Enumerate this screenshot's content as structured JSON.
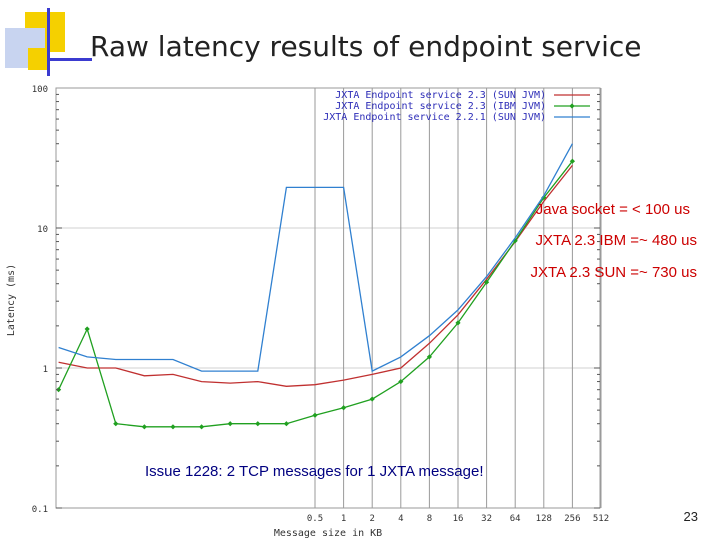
{
  "slide": {
    "title": "Raw latency results of endpoint service",
    "page_number": "23"
  },
  "annotations": {
    "java_socket": "Java socket = < 100 us",
    "jxta_ibm": "JXTA 2.3 IBM =~ 480 us",
    "jxta_sun": "JXTA 2.3 SUN =~ 730 us",
    "issue": "Issue 1228: 2 TCP messages for 1 JXTA message!"
  },
  "colors": {
    "accent_yellow": "#f5d000",
    "accent_blue": "#3b3bd0",
    "annotation_red": "#cc0000",
    "annotation_blue": "#000080"
  },
  "chart_data": {
    "type": "line",
    "xlabel": "Message size in KB",
    "ylabel": "Latency (ms)",
    "y_scale": "log",
    "ylim": [
      0.1,
      100
    ],
    "y_ticks": [
      "100",
      "10",
      "1",
      "0.1"
    ],
    "x_ticks": [
      "0.5",
      "1",
      "2",
      "4",
      "8",
      "16",
      "32",
      "64",
      "128",
      "256",
      "512"
    ],
    "x": [
      0.001,
      0.002,
      0.004,
      0.008,
      0.016,
      0.032,
      0.064,
      0.125,
      0.25,
      0.5,
      1,
      2,
      4,
      8,
      16,
      32,
      64,
      128,
      256
    ],
    "series": [
      {
        "name": "JXTA Endpoint service 2.3 (SUN JVM)",
        "color": "#c03030",
        "marker": "none",
        "values": [
          1.1,
          1.0,
          1.0,
          0.88,
          0.9,
          0.8,
          0.78,
          0.8,
          0.74,
          0.76,
          0.82,
          0.9,
          1.0,
          1.5,
          2.4,
          4.3,
          8.0,
          15.5,
          28.0
        ]
      },
      {
        "name": "JXTA Endpoint service 2.3 (IBM JVM)",
        "color": "#20a020",
        "marker": "diamond",
        "values": [
          0.7,
          1.9,
          0.4,
          0.38,
          0.38,
          0.38,
          0.4,
          0.4,
          0.4,
          0.46,
          0.52,
          0.6,
          0.8,
          1.2,
          2.1,
          4.1,
          8.1,
          16.5,
          30.0
        ]
      },
      {
        "name": "JXTA Endpoint service 2.2.1 (SUN JVM)",
        "color": "#3080d0",
        "marker": "none",
        "values": [
          1.4,
          1.2,
          1.15,
          1.15,
          1.15,
          0.95,
          0.95,
          0.95,
          19.5,
          19.5,
          19.5,
          0.95,
          1.2,
          1.7,
          2.6,
          4.5,
          8.5,
          17.0,
          40.0
        ]
      }
    ]
  }
}
